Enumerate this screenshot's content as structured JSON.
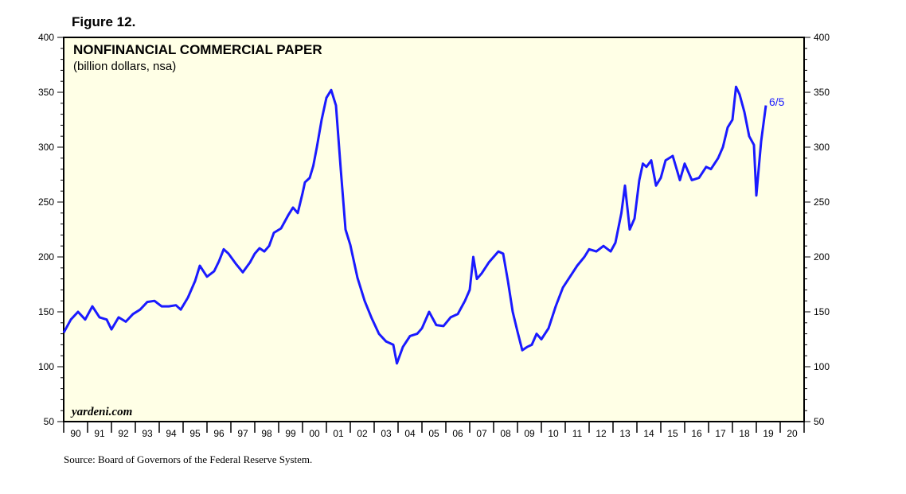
{
  "figure_label": "Figure 12.",
  "source": "Source: Board of Governors of the Federal Reserve System.",
  "watermark": "yardeni.com",
  "colors": {
    "plot_background": "#ffffe6",
    "series": "#1a1aff",
    "frame": "#000000"
  },
  "chart_data": {
    "type": "line",
    "title": "NONFINANCIAL COMMERCIAL PAPER",
    "subtitle": "(billion dollars, nsa)",
    "ylim": [
      50,
      400
    ],
    "y_ticks": [
      50,
      100,
      150,
      200,
      250,
      300,
      350,
      400
    ],
    "xlim": [
      1990,
      2021
    ],
    "x_tick_labels": [
      "90",
      "91",
      "92",
      "93",
      "94",
      "95",
      "96",
      "97",
      "98",
      "99",
      "00",
      "01",
      "02",
      "03",
      "04",
      "05",
      "06",
      "07",
      "08",
      "09",
      "10",
      "11",
      "12",
      "13",
      "14",
      "15",
      "16",
      "17",
      "18",
      "19",
      "20"
    ],
    "last_point_label": "6/5",
    "grid": false,
    "legend": "none",
    "series": [
      {
        "x": [
          1990.0,
          1990.3,
          1990.6,
          1990.9,
          1991.2,
          1991.5,
          1991.8,
          1992.0,
          1992.3,
          1992.6,
          1992.9,
          1993.2,
          1993.5,
          1993.8,
          1994.1,
          1994.4,
          1994.7,
          1994.9,
          1995.2,
          1995.5,
          1995.7,
          1996.0,
          1996.3,
          1996.5,
          1996.7,
          1996.9,
          1997.2,
          1997.5,
          1997.8,
          1998.0,
          1998.2,
          1998.4,
          1998.6,
          1998.8,
          1999.1,
          1999.4,
          1999.6,
          1999.8,
          2000.0,
          2000.1,
          2000.2,
          2000.3,
          2000.45,
          2000.6,
          2000.8,
          2001.0,
          2001.2,
          2001.4,
          2001.6,
          2001.8,
          2002.0,
          2002.3,
          2002.6,
          2002.9,
          2003.2,
          2003.5,
          2003.8,
          2003.95,
          2004.2,
          2004.5,
          2004.8,
          2005.0,
          2005.3,
          2005.6,
          2005.9,
          2006.2,
          2006.5,
          2006.8,
          2007.0,
          2007.15,
          2007.3,
          2007.5,
          2007.8,
          2008.0,
          2008.2,
          2008.4,
          2008.6,
          2008.8,
          2009.0,
          2009.2,
          2009.4,
          2009.6,
          2009.8,
          2010.0,
          2010.3,
          2010.6,
          2010.9,
          2011.2,
          2011.5,
          2011.8,
          2012.0,
          2012.3,
          2012.6,
          2012.9,
          2013.1,
          2013.35,
          2013.5,
          2013.7,
          2013.9,
          2014.1,
          2014.25,
          2014.4,
          2014.6,
          2014.8,
          2015.0,
          2015.2,
          2015.5,
          2015.8,
          2016.0,
          2016.3,
          2016.6,
          2016.9,
          2017.1,
          2017.4,
          2017.6,
          2017.8,
          2018.0,
          2018.15,
          2018.3,
          2018.5,
          2018.7,
          2018.9,
          2019.0,
          2019.2,
          2019.4
        ],
        "values": [
          131,
          143,
          150,
          143,
          155,
          145,
          143,
          134,
          145,
          141,
          148,
          152,
          159,
          160,
          155,
          155,
          156,
          152,
          163,
          178,
          192,
          182,
          187,
          196,
          207,
          203,
          194,
          186,
          195,
          203,
          208,
          205,
          210,
          222,
          226,
          238,
          245,
          240,
          258,
          268,
          270,
          272,
          283,
          300,
          325,
          345,
          352,
          338,
          280,
          225,
          211,
          181,
          160,
          144,
          130,
          123,
          120,
          103,
          118,
          128,
          130,
          135,
          150,
          138,
          137,
          145,
          148,
          160,
          170,
          200,
          180,
          185,
          195,
          200,
          205,
          203,
          178,
          150,
          132,
          115,
          118,
          120,
          130,
          125,
          135,
          155,
          172,
          182,
          192,
          200,
          207,
          205,
          210,
          205,
          213,
          240,
          265,
          225,
          235,
          270,
          285,
          282,
          288,
          265,
          272,
          288,
          292,
          270,
          285,
          270,
          272,
          282,
          280,
          290,
          300,
          318,
          325,
          355,
          348,
          332,
          310,
          302,
          256,
          305,
          338
        ]
      }
    ]
  }
}
